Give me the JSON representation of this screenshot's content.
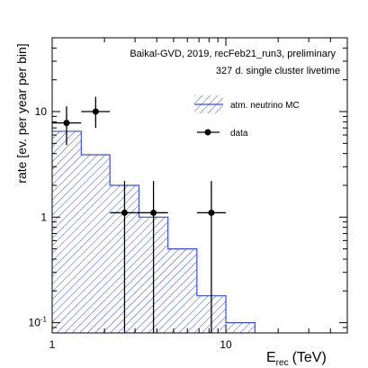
{
  "chart_data": {
    "type": "histogram",
    "ylabel": "rate [ev. per year per bin]",
    "xlabel_main": "E",
    "xlabel_sub": "rec",
    "xlabel_unit": "(TeV)",
    "x_scale": "log",
    "y_scale": "log",
    "xlim": [
      1,
      50
    ],
    "ylim": [
      0.08,
      50
    ],
    "grid": false,
    "legend_position": "top-right",
    "annotations": [
      "Baikal-GVD, 2019, recFeb21_run3, preliminary",
      "327 d. single cluster livetime"
    ],
    "x_tick_labels": [
      {
        "value": 1,
        "label": "1"
      },
      {
        "value": 10,
        "label": "10"
      }
    ],
    "y_tick_labels": [
      {
        "value": 0.1,
        "label": "10",
        "sup": "-1"
      },
      {
        "value": 1,
        "label": "1",
        "sup": ""
      },
      {
        "value": 10,
        "label": "10",
        "sup": ""
      }
    ],
    "series": [
      {
        "name": "atm. neutrino MC",
        "kind": "hatched-histogram",
        "color": "#3b4fd6",
        "bin_edges": [
          1,
          1.47,
          2.15,
          3.16,
          4.64,
          6.81,
          10,
          14.7
        ],
        "values": [
          6.5,
          3.9,
          2.0,
          1.0,
          0.5,
          0.18,
          0.1
        ]
      },
      {
        "name": "data",
        "kind": "points-with-errors",
        "color": "#000000",
        "points": [
          {
            "x": 1.21,
            "x_lo": 1.0,
            "x_hi": 1.47,
            "y": 7.8,
            "y_lo": 4.8,
            "y_hi": 11.2
          },
          {
            "x": 1.78,
            "x_lo": 1.47,
            "x_hi": 2.15,
            "y": 10.0,
            "y_lo": 7.0,
            "y_hi": 13.8
          },
          {
            "x": 2.61,
            "x_lo": 2.15,
            "x_hi": 3.16,
            "y": 1.1,
            "y_lo": 0.08,
            "y_hi": 2.2
          },
          {
            "x": 3.83,
            "x_lo": 3.16,
            "x_hi": 4.64,
            "y": 1.1,
            "y_lo": 0.08,
            "y_hi": 2.2
          },
          {
            "x": 8.25,
            "x_lo": 6.81,
            "x_hi": 10.0,
            "y": 1.1,
            "y_lo": 0.08,
            "y_hi": 2.2
          }
        ]
      }
    ]
  }
}
